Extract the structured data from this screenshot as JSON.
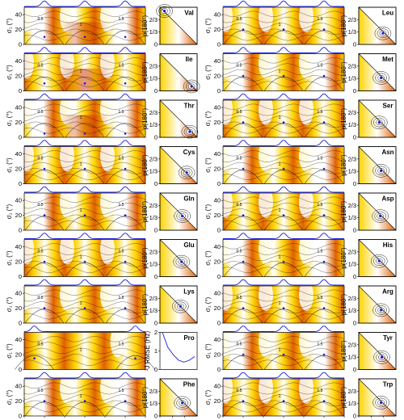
{
  "chart_data": {
    "type": "heatmap",
    "title": "",
    "colors": {
      "contour_low": "#ffffff",
      "contour_mid": "#ffd400",
      "contour_high": "#e06000",
      "contour_max": "#b01000",
      "line": "#000000",
      "trace": "#1a1adb",
      "marker": "#1a1adb"
    },
    "large_panel": {
      "xlabel": "χ₁ (°)",
      "ylabel": "σ₁ (°)",
      "xticks": [
        "0",
        "60",
        "120",
        "180",
        "240",
        "300",
        "360"
      ],
      "yticks": [
        "0",
        "20",
        "40"
      ],
      "xlim": [
        0,
        360
      ],
      "ylim": [
        0,
        50
      ]
    },
    "small_panel": {
      "xlabel": "p(300°)",
      "ylabel": "p(180°)",
      "xticks": [
        "0",
        "1/3",
        "2/3"
      ],
      "yticks": [
        "0",
        "1/3",
        "2/3"
      ]
    },
    "contour_labels": [
      "0.5",
      "1",
      "1.5",
      "2",
      "2.5"
    ],
    "residues": [
      {
        "name": "Val",
        "rmse_range": [
          0,
          3.5
        ],
        "best_sigma": 10,
        "best_chi": [
          60,
          180,
          300
        ],
        "best_p": [
          0.12,
          0.9
        ]
      },
      {
        "name": "Ile",
        "rmse_range": [
          0,
          3.5
        ],
        "best_sigma": 10,
        "best_chi": [
          60,
          180,
          300
        ],
        "best_p": [
          0.85,
          0.12
        ]
      },
      {
        "name": "Thr",
        "rmse_range": [
          0,
          3.5
        ],
        "best_sigma": 5,
        "best_chi": [
          60,
          180,
          300
        ],
        "best_p": [
          0.8,
          0.15
        ]
      },
      {
        "name": "Cys",
        "rmse_range": [
          0,
          3
        ],
        "best_sigma": 20,
        "best_chi": [
          60,
          180,
          300
        ],
        "best_p": [
          0.72,
          0.3
        ]
      },
      {
        "name": "Gln",
        "rmse_range": [
          0,
          3
        ],
        "best_sigma": 20,
        "best_chi": [
          60,
          180,
          300
        ],
        "best_p": [
          0.6,
          0.38
        ]
      },
      {
        "name": "Glu",
        "rmse_range": [
          0,
          3
        ],
        "best_sigma": 20,
        "best_chi": [
          60,
          180,
          300
        ],
        "best_p": [
          0.58,
          0.4
        ]
      },
      {
        "name": "Lys",
        "rmse_range": [
          0,
          3
        ],
        "best_sigma": 20,
        "best_chi": [
          60,
          180,
          300
        ],
        "best_p": [
          0.55,
          0.45
        ]
      },
      {
        "name": "Pro",
        "rmse_range": [
          0,
          2
        ],
        "best_sigma": 15,
        "best_chi": [
          30,
          330
        ],
        "rmse_curve": [
          2.0,
          1.2,
          0.8,
          0.5,
          0.4,
          0.5,
          0.7
        ]
      },
      {
        "name": "Phe",
        "rmse_range": [
          0,
          3
        ],
        "best_sigma": 20,
        "best_chi": [
          60,
          180,
          300
        ],
        "best_p": [
          0.6,
          0.35
        ]
      },
      {
        "name": "Leu",
        "rmse_range": [
          0,
          3
        ],
        "best_sigma": 20,
        "best_chi": [
          60,
          180,
          300
        ],
        "best_p": [
          0.65,
          0.3
        ]
      },
      {
        "name": "Met",
        "rmse_range": [
          0,
          3
        ],
        "best_sigma": 20,
        "best_chi": [
          60,
          180,
          300
        ],
        "best_p": [
          0.6,
          0.35
        ]
      },
      {
        "name": "Ser",
        "rmse_range": [
          0,
          3
        ],
        "best_sigma": 20,
        "best_chi": [
          60,
          180,
          300
        ],
        "best_p": [
          0.55,
          0.4
        ]
      },
      {
        "name": "Asn",
        "rmse_range": [
          0,
          3
        ],
        "best_sigma": 20,
        "best_chi": [
          60,
          180,
          300
        ],
        "best_p": [
          0.6,
          0.35
        ]
      },
      {
        "name": "Asp",
        "rmse_range": [
          0,
          3
        ],
        "best_sigma": 20,
        "best_chi": [
          60,
          180,
          300
        ],
        "best_p": [
          0.58,
          0.38
        ]
      },
      {
        "name": "His",
        "rmse_range": [
          0,
          3
        ],
        "best_sigma": 20,
        "best_chi": [
          60,
          180,
          300
        ],
        "best_p": [
          0.55,
          0.42
        ]
      },
      {
        "name": "Arg",
        "rmse_range": [
          0,
          3
        ],
        "best_sigma": 20,
        "best_chi": [
          60,
          180,
          300
        ],
        "best_p": [
          0.6,
          0.35
        ]
      },
      {
        "name": "Tyr",
        "rmse_range": [
          0,
          3
        ],
        "best_sigma": 20,
        "best_chi": [
          60,
          180,
          300
        ],
        "best_p": [
          0.62,
          0.33
        ]
      },
      {
        "name": "Trp",
        "rmse_range": [
          0,
          3
        ],
        "best_sigma": 20,
        "best_chi": [
          60,
          180,
          300
        ],
        "best_p": [
          0.6,
          0.36
        ]
      }
    ],
    "pro_panel": {
      "ylabel": "³J RMSE (Hz)",
      "yticks": [
        "0",
        "1",
        "2"
      ],
      "ylim": [
        0,
        2
      ]
    }
  }
}
